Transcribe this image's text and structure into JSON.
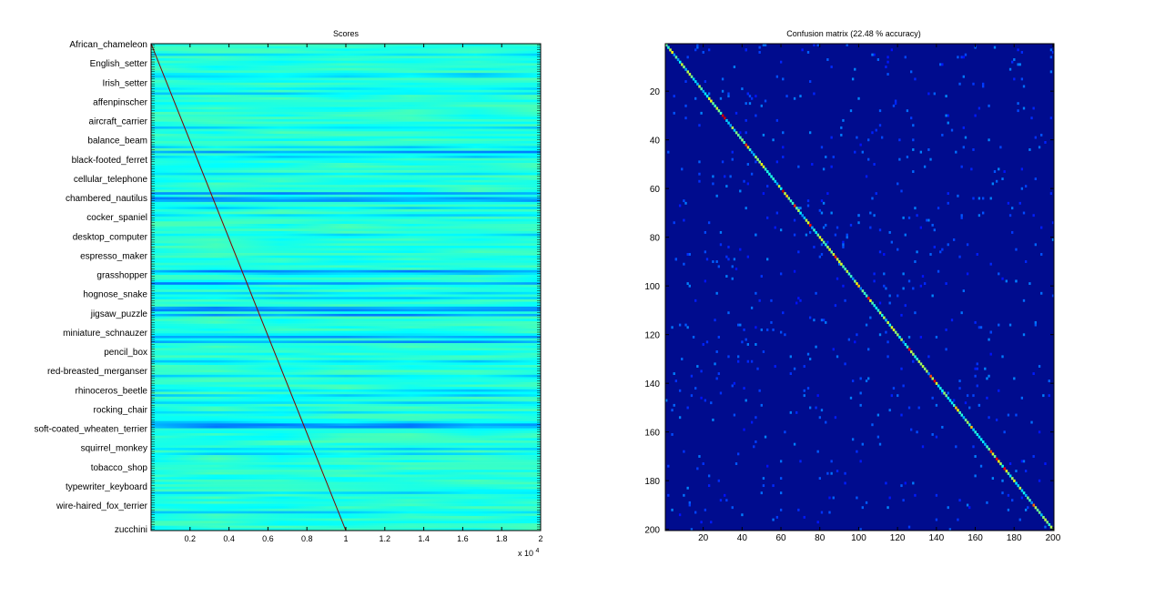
{
  "chart_data": [
    {
      "type": "heatmap",
      "title": "Scores",
      "xlabel": "",
      "ylabel": "",
      "x_ticks": [
        "0.2",
        "0.4",
        "0.6",
        "0.8",
        "1",
        "1.2",
        "1.4",
        "1.6",
        "1.8",
        "2"
      ],
      "x_tick_values": [
        0.2,
        0.4,
        0.6,
        0.8,
        1.0,
        1.2,
        1.4,
        1.6,
        1.8,
        2.0
      ],
      "x_exponent_base": "x 10",
      "x_exponent_power": "4",
      "xlim": [
        0.0,
        2.0
      ],
      "y_tick_labels_legible": [
        "African_chameleon",
        "English_setter",
        "Irish_setter",
        "affenpinscher",
        "aircraft_carrier",
        "balance_beam",
        "black-footed_ferret",
        "cellular_telephone",
        "chambered_nautilus",
        "cocker_spaniel",
        "desktop_computer",
        "espresso_maker",
        "grasshopper",
        "hognose_snake",
        "jigsaw_puzzle",
        "miniature_schnauzer",
        "pencil_box",
        "red-breasted_merganser",
        "rhinoceros_beetle",
        "rocking_chair",
        "soft-coated_wheaten_terrier",
        "squirrel_monkey",
        "tobacco_shop",
        "typewriter_keyboard",
        "wire-haired_fox_terrier"
      ],
      "y_last_label": "zucchini",
      "diagonal_line": {
        "x_start": 0.0,
        "x_end": 1.0,
        "color": "#800000"
      },
      "colormap": "jet",
      "grid": false
    },
    {
      "type": "heatmap",
      "title": "Confusion matrix (22.48 % accuracy)",
      "x_ticks": [
        "20",
        "40",
        "60",
        "80",
        "100",
        "120",
        "140",
        "160",
        "180",
        "200"
      ],
      "y_ticks": [
        "20",
        "40",
        "60",
        "80",
        "100",
        "120",
        "140",
        "160",
        "180",
        "200"
      ],
      "xlim": [
        1,
        200
      ],
      "ylim": [
        1,
        200
      ],
      "n_classes": 200,
      "accuracy_percent": 22.48,
      "colormap": "jet",
      "grid": false
    }
  ]
}
